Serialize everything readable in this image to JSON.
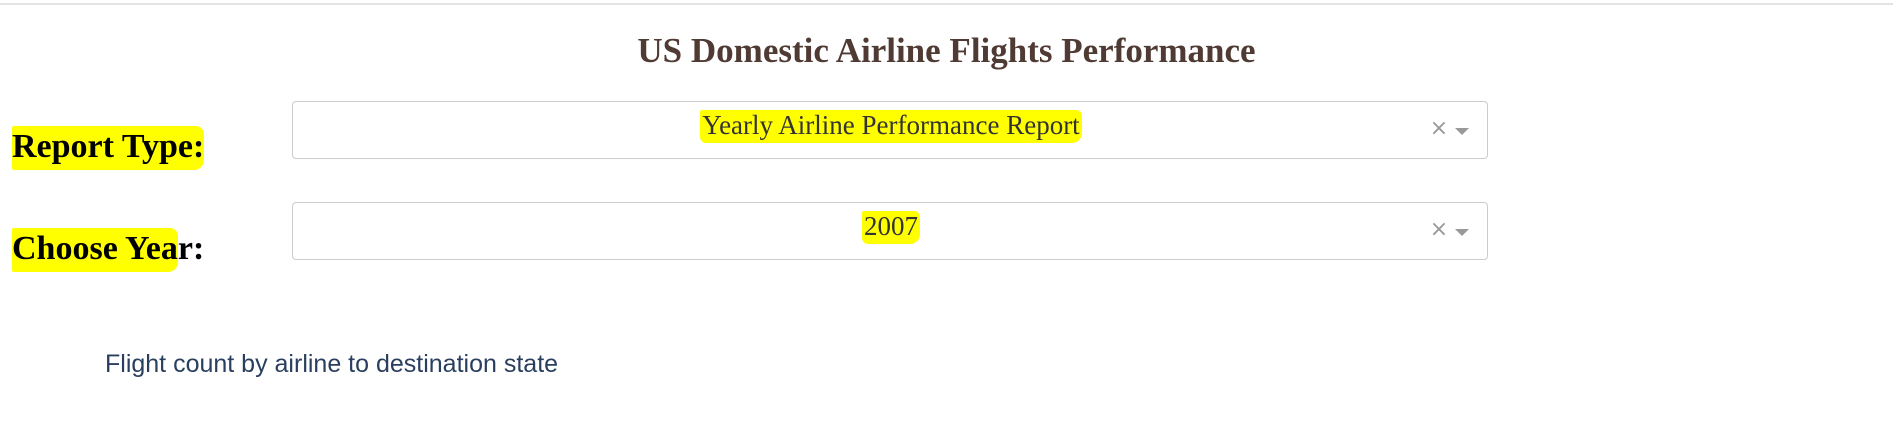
{
  "page": {
    "title": "US Domestic Airline Flights Performance"
  },
  "report_type": {
    "label_highlighted": "Report Type:",
    "label_rest": "",
    "value": "Yearly Airline Performance Report",
    "clear_icon": "×",
    "icon_names": [
      "clear-icon",
      "chevron-down-icon"
    ]
  },
  "year": {
    "label_highlighted": "Choose Yea",
    "label_rest": "r:",
    "value": "2007",
    "clear_icon": "×",
    "icon_names": [
      "clear-icon",
      "chevron-down-icon"
    ]
  },
  "chart": {
    "title": "Flight count by airline to destination state"
  },
  "colors": {
    "highlight": "#ffff00",
    "title": "#503a34",
    "chart_title": "#2a3f5f",
    "dropdown_border": "#cccccc",
    "icon": "#999999"
  }
}
